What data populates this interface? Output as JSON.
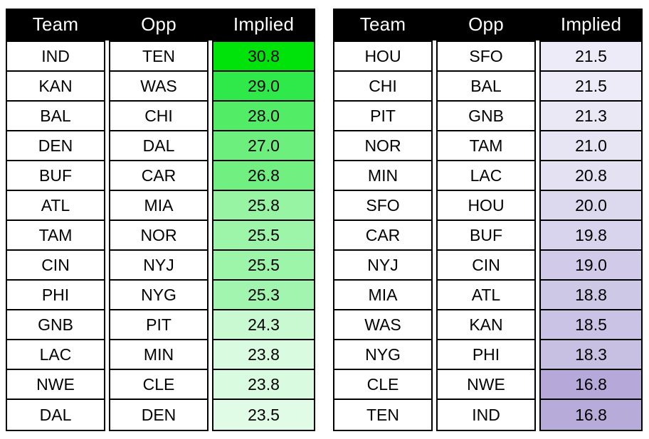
{
  "page": {
    "background_color": "#ffffff",
    "header_bg_color": "#000000",
    "header_text_color": "#ffffff",
    "border_color": "#000000"
  },
  "chart_data": [
    {
      "type": "table",
      "position": "left",
      "description": "NFL implied team totals, higher half, green heat scale from bright green (high) toward white (low)",
      "columns": {
        "team": "Team",
        "opp": "Opp",
        "implied": "Implied"
      },
      "heat_scale": {
        "high_color": "#00e30a",
        "low_color": "#e0fce6"
      },
      "rows": [
        {
          "team": "IND",
          "opp": "TEN",
          "implied": "30.8",
          "implied_bg": "#00e30a"
        },
        {
          "team": "KAN",
          "opp": "WAS",
          "implied": "29.0",
          "implied_bg": "#2fe94a"
        },
        {
          "team": "BAL",
          "opp": "CHI",
          "implied": "28.0",
          "implied_bg": "#53ec67"
        },
        {
          "team": "DEN",
          "opp": "DAL",
          "implied": "27.0",
          "implied_bg": "#6cef7d"
        },
        {
          "team": "BUF",
          "opp": "CAR",
          "implied": "26.8",
          "implied_bg": "#71f081"
        },
        {
          "team": "ATL",
          "opp": "MIA",
          "implied": "25.8",
          "implied_bg": "#96f4a3"
        },
        {
          "team": "TAM",
          "opp": "NOR",
          "implied": "25.5",
          "implied_bg": "#9cf5a8"
        },
        {
          "team": "CIN",
          "opp": "NYJ",
          "implied": "25.5",
          "implied_bg": "#9cf5a8"
        },
        {
          "team": "PHI",
          "opp": "NYG",
          "implied": "25.3",
          "implied_bg": "#a2f5ae"
        },
        {
          "team": "GNB",
          "opp": "PIT",
          "implied": "24.3",
          "implied_bg": "#c9f9d1"
        },
        {
          "team": "LAC",
          "opp": "MIN",
          "implied": "23.8",
          "implied_bg": "#d9fbe0"
        },
        {
          "team": "NWE",
          "opp": "CLE",
          "implied": "23.8",
          "implied_bg": "#d9fbe0"
        },
        {
          "team": "DAL",
          "opp": "DEN",
          "implied": "23.5",
          "implied_bg": "#e0fce6"
        }
      ]
    },
    {
      "type": "table",
      "position": "right",
      "description": "NFL implied team totals, lower half, heat scale from near-white (high) toward purple (low)",
      "columns": {
        "team": "Team",
        "opp": "Opp",
        "implied": "Implied"
      },
      "heat_scale": {
        "high_color": "#edebf7",
        "low_color": "#b7abd9"
      },
      "rows": [
        {
          "team": "HOU",
          "opp": "SFO",
          "implied": "21.5",
          "implied_bg": "#edebf7"
        },
        {
          "team": "CHI",
          "opp": "BAL",
          "implied": "21.5",
          "implied_bg": "#edebf7"
        },
        {
          "team": "PIT",
          "opp": "GNB",
          "implied": "21.3",
          "implied_bg": "#eae8f5"
        },
        {
          "team": "NOR",
          "opp": "TAM",
          "implied": "21.0",
          "implied_bg": "#e7e4f3"
        },
        {
          "team": "MIN",
          "opp": "LAC",
          "implied": "20.8",
          "implied_bg": "#e4e1f2"
        },
        {
          "team": "SFO",
          "opp": "HOU",
          "implied": "20.0",
          "implied_bg": "#dcd8ee"
        },
        {
          "team": "CAR",
          "opp": "BUF",
          "implied": "19.8",
          "implied_bg": "#d9d4ed"
        },
        {
          "team": "NYJ",
          "opp": "CIN",
          "implied": "19.0",
          "implied_bg": "#d1cbe9"
        },
        {
          "team": "MIA",
          "opp": "ATL",
          "implied": "18.8",
          "implied_bg": "#cec8e7"
        },
        {
          "team": "WAS",
          "opp": "KAN",
          "implied": "18.5",
          "implied_bg": "#cbc3e5"
        },
        {
          "team": "NYG",
          "opp": "PHI",
          "implied": "18.3",
          "implied_bg": "#c8c0e3"
        },
        {
          "team": "CLE",
          "opp": "NWE",
          "implied": "16.8",
          "implied_bg": "#b6a9da"
        },
        {
          "team": "TEN",
          "opp": "IND",
          "implied": "16.8",
          "implied_bg": "#b7abd9"
        }
      ]
    }
  ]
}
